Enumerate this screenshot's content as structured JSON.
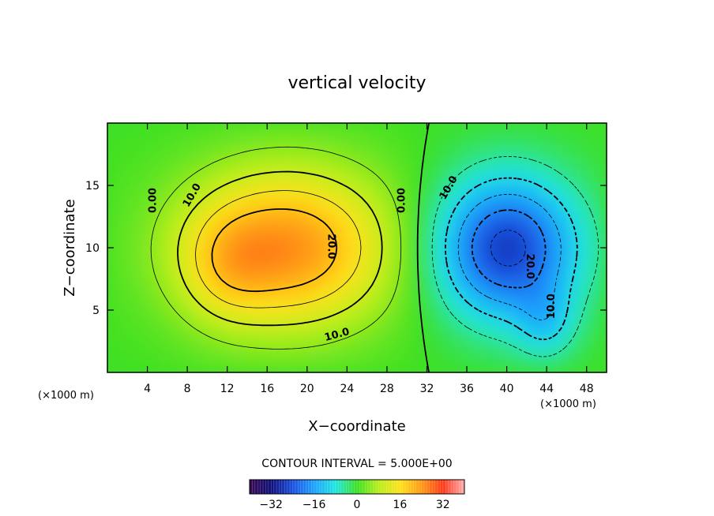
{
  "chart_data": {
    "type": "heatmap",
    "title": "vertical velocity",
    "xlabel": "X−coordinate",
    "ylabel": "Z−coordinate",
    "x_unit_left": "(×1000 m)",
    "x_unit_right": "(×1000 m)",
    "xlim": [
      0,
      50
    ],
    "ylim": [
      0,
      20
    ],
    "x_ticks": [
      4,
      8,
      12,
      16,
      20,
      24,
      28,
      32,
      36,
      40,
      44,
      48
    ],
    "y_ticks": [
      5,
      10,
      15
    ],
    "contour_interval_text": "CONTOUR INTERVAL = 5.000E+00",
    "contour_labels": [
      {
        "text": "0.00",
        "x": 4.6,
        "z": 13.8,
        "angle": -90
      },
      {
        "text": "10.0",
        "x": 8.5,
        "z": 14.2,
        "angle": -60
      },
      {
        "text": "20.0",
        "x": 22.4,
        "z": 10.1,
        "angle": 90
      },
      {
        "text": "10.0",
        "x": 23.0,
        "z": 3.0,
        "angle": -15
      },
      {
        "text": "0.00",
        "x": 29.5,
        "z": 13.8,
        "angle": -90
      },
      {
        "text": "10.0",
        "x": 34.2,
        "z": 14.8,
        "angle": -60
      },
      {
        "text": "20.0",
        "x": 42.3,
        "z": 8.5,
        "angle": 90
      },
      {
        "text": "10.0",
        "x": 44.5,
        "z": 5.3,
        "angle": -90
      }
    ],
    "field_features": [
      {
        "sign": "up",
        "x": 18,
        "z": 10,
        "peak": 25,
        "sx": 7.5,
        "sz": 4.5
      },
      {
        "sign": "up",
        "x": 12,
        "z": 8.5,
        "peak": 6,
        "sx": 3,
        "sz": 3
      },
      {
        "sign": "down",
        "x": 40,
        "z": 10,
        "peak": -27,
        "sx": 5,
        "sz": 4
      },
      {
        "sign": "down",
        "x": 44,
        "z": 4,
        "peak": -8,
        "sx": 2,
        "sz": 2
      }
    ],
    "colorbar": {
      "min": -40,
      "max": 40,
      "ticks": [
        "−32",
        "−16",
        "0",
        "16",
        "32"
      ],
      "tick_values": [
        -32,
        -16,
        0,
        16,
        32
      ]
    }
  }
}
